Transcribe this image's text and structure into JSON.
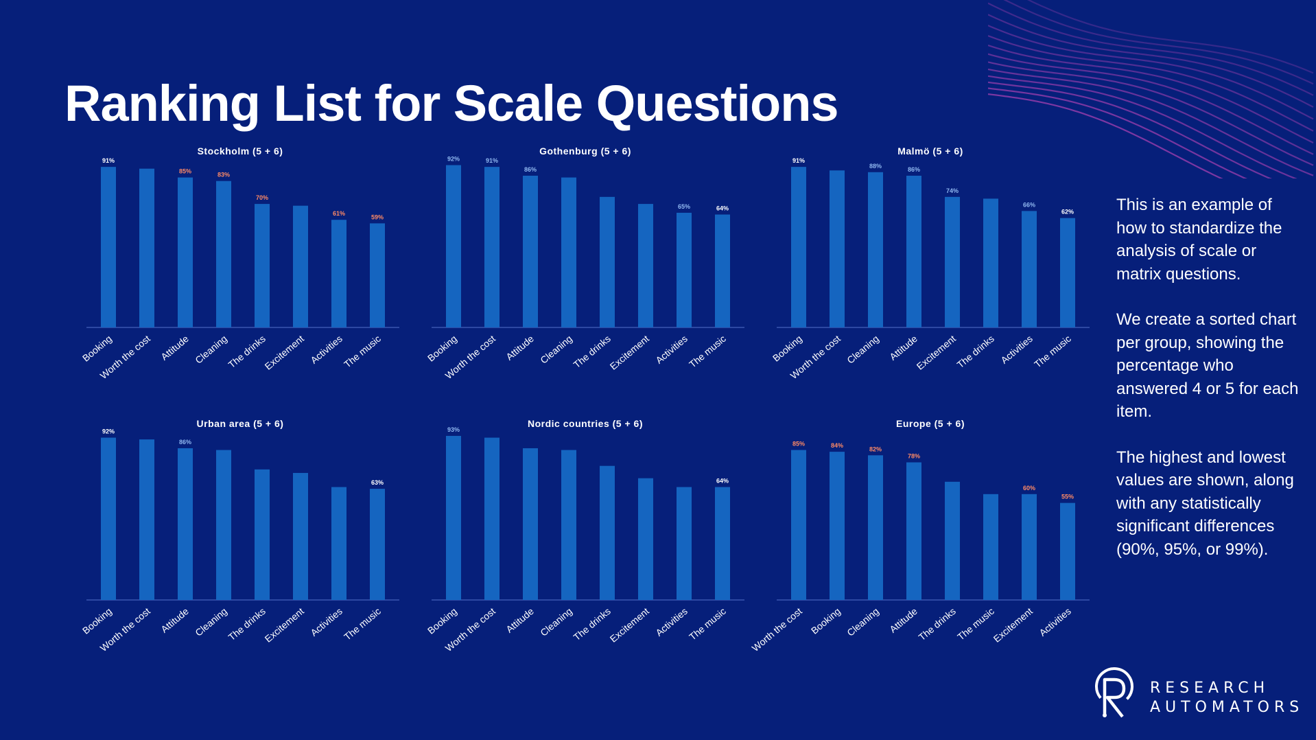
{
  "title": "Ranking List for Scale Questions",
  "note": [
    "This is an example of how to standardize the analysis of scale or matrix questions.",
    "We create a sorted chart per group, showing the percentage who answered 4 or 5 for each item.",
    "The highest and lowest values are shown, along with any statistically significant differences (90%, 95%, or 99%)."
  ],
  "brand": {
    "line1": "RESEARCH",
    "line2": "AUTOMATORS"
  },
  "colors": {
    "background": "#061f7a",
    "bar": "#1565c0",
    "label_white": "#ffffff",
    "label_orange": "#ff8a65",
    "label_blue": "#90b8f0",
    "axis": "#3a57b0",
    "decoration": "#8e3ba8"
  },
  "chart_data": [
    {
      "type": "bar",
      "title": "Stockholm  (5 + 6)",
      "categories": [
        "Booking",
        "Worth the cost",
        "Attitude",
        "Cleaning",
        "The drinks",
        "Excitement",
        "Activities",
        "The music"
      ],
      "values": [
        91,
        90,
        85,
        83,
        70,
        69,
        61,
        59
      ],
      "labels": [
        "91%",
        "",
        "85%",
        "83%",
        "70%",
        "",
        "61%",
        "59%"
      ],
      "label_colors": [
        "white",
        "",
        "orange",
        "orange",
        "orange",
        "",
        "orange",
        "orange"
      ],
      "ylim": [
        0,
        100
      ]
    },
    {
      "type": "bar",
      "title": "Gothenburg  (5 + 6)",
      "categories": [
        "Booking",
        "Worth the cost",
        "Attitude",
        "Cleaning",
        "The drinks",
        "Excitement",
        "Activities",
        "The music"
      ],
      "values": [
        92,
        91,
        86,
        85,
        74,
        70,
        65,
        64
      ],
      "labels": [
        "92%",
        "91%",
        "86%",
        "",
        "",
        "",
        "65%",
        "64%"
      ],
      "label_colors": [
        "blue",
        "blue",
        "blue",
        "",
        "",
        "",
        "blue",
        "white"
      ],
      "ylim": [
        0,
        100
      ]
    },
    {
      "type": "bar",
      "title": "Malmö  (5 + 6)",
      "categories": [
        "Booking",
        "Worth the cost",
        "Cleaning",
        "Attitude",
        "Excitement",
        "The drinks",
        "Activities",
        "The music"
      ],
      "values": [
        91,
        89,
        88,
        86,
        74,
        73,
        66,
        62
      ],
      "labels": [
        "91%",
        "",
        "88%",
        "86%",
        "74%",
        "",
        "66%",
        "62%"
      ],
      "label_colors": [
        "white",
        "",
        "blue",
        "blue",
        "blue",
        "",
        "blue",
        "white"
      ],
      "ylim": [
        0,
        100
      ]
    },
    {
      "type": "bar",
      "title": "Urban area  (5 + 6)",
      "categories": [
        "Booking",
        "Worth the cost",
        "Attitude",
        "Cleaning",
        "The drinks",
        "Excitement",
        "Activities",
        "The music"
      ],
      "values": [
        92,
        91,
        86,
        85,
        74,
        72,
        64,
        63
      ],
      "labels": [
        "92%",
        "",
        "86%",
        "",
        "",
        "",
        "",
        "63%"
      ],
      "label_colors": [
        "white",
        "",
        "blue",
        "",
        "",
        "",
        "",
        "white"
      ],
      "ylim": [
        0,
        100
      ]
    },
    {
      "type": "bar",
      "title": "Nordic countries  (5 + 6)",
      "categories": [
        "Booking",
        "Worth the cost",
        "Attitude",
        "Cleaning",
        "The drinks",
        "Excitement",
        "Activities",
        "The music"
      ],
      "values": [
        93,
        92,
        86,
        85,
        76,
        69,
        64,
        64
      ],
      "labels": [
        "93%",
        "",
        "",
        "",
        "",
        "",
        "",
        "64%"
      ],
      "label_colors": [
        "blue",
        "",
        "",
        "",
        "",
        "",
        "",
        "white"
      ],
      "ylim": [
        0,
        100
      ]
    },
    {
      "type": "bar",
      "title": "Europe  (5 + 6)",
      "categories": [
        "Worth the cost",
        "Booking",
        "Cleaning",
        "Attitude",
        "The drinks",
        "The music",
        "Excitement",
        "Activities"
      ],
      "values": [
        85,
        84,
        82,
        78,
        67,
        60,
        60,
        55
      ],
      "labels": [
        "85%",
        "84%",
        "82%",
        "78%",
        "",
        "",
        "60%",
        "55%"
      ],
      "label_colors": [
        "orange",
        "orange",
        "orange",
        "orange",
        "",
        "",
        "orange",
        "orange"
      ],
      "ylim": [
        0,
        100
      ]
    }
  ]
}
